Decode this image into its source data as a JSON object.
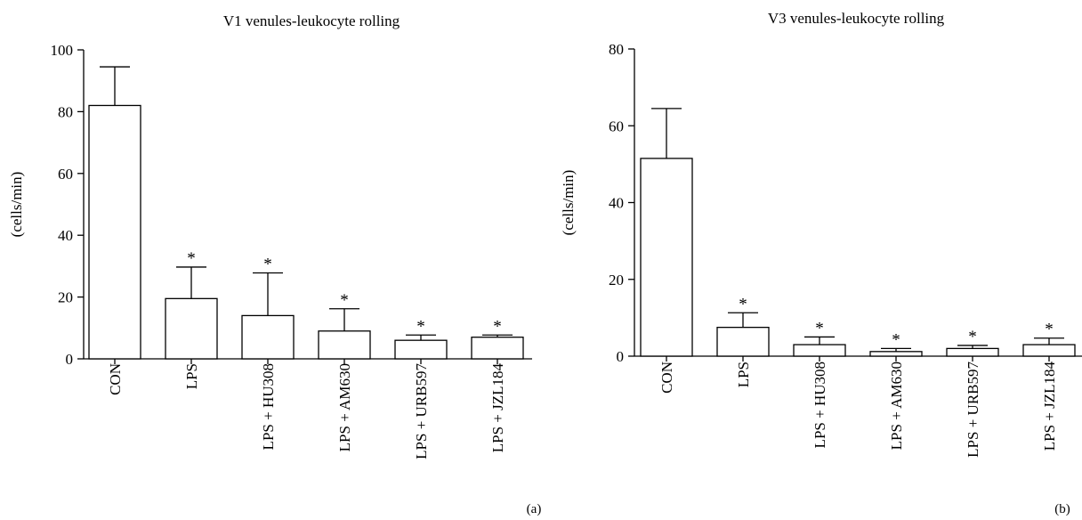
{
  "chart_data": [
    {
      "type": "bar",
      "title": "V1 venules-leukocyte rolling",
      "ylabel": "(cells/min)",
      "xlabel": "",
      "panel_label": "(a)",
      "ylim": [
        0,
        100
      ],
      "yticks": [
        0,
        20,
        40,
        60,
        80,
        100
      ],
      "grid": false,
      "categories": [
        "CON",
        "LPS",
        "LPS + HU308",
        "LPS + AM630",
        "LPS + URB597",
        "LPS + JZL184"
      ],
      "values": [
        82,
        19.5,
        14,
        9,
        6,
        7
      ],
      "error_upper": [
        94.5,
        29.7,
        27.8,
        16.2,
        7.7,
        7.7
      ],
      "significance": [
        "",
        "*",
        "*",
        "*",
        "*",
        "*"
      ]
    },
    {
      "type": "bar",
      "title": "V3 venules-leukocyte rolling",
      "ylabel": "(cells/min)",
      "xlabel": "",
      "panel_label": "(b)",
      "ylim": [
        0,
        80
      ],
      "yticks": [
        0,
        20,
        40,
        60,
        80
      ],
      "grid": false,
      "categories": [
        "CON",
        "LPS",
        "LPS + HU308",
        "LPS + AM630",
        "LPS + URB597",
        "LPS + JZL184"
      ],
      "values": [
        51.5,
        7.5,
        3,
        1.2,
        2,
        3
      ],
      "error_upper": [
        64.5,
        11.3,
        5,
        2,
        2.8,
        4.7
      ],
      "significance": [
        "",
        "*",
        "*",
        "*",
        "*",
        "*"
      ]
    }
  ]
}
